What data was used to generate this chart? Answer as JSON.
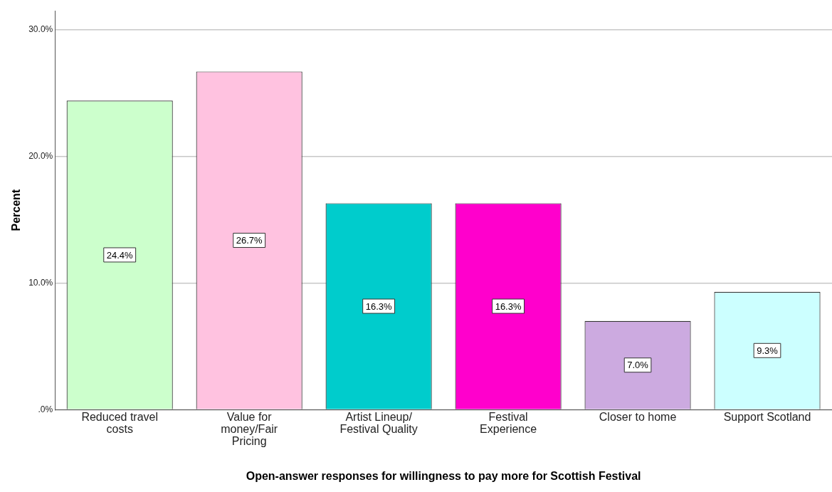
{
  "chart_data": {
    "type": "bar",
    "xlabel": "Open-answer responses for willingness to pay more for Scottish Festival",
    "ylabel": "Percent",
    "categories": [
      "Reduced travel costs",
      "Value for money/Fair Pricing",
      "Artist Lineup/ Festival Quality",
      "Festival Experience",
      "Closer to home",
      "Support Scotland"
    ],
    "values": [
      24.4,
      26.7,
      16.3,
      16.3,
      7.0,
      9.3
    ],
    "colors": [
      "#ccffcc",
      "#ffc2e0",
      "#00cccc",
      "#ff00cc",
      "#ccaae0",
      "#ccffff"
    ],
    "value_labels": [
      "24.4%",
      "26.7%",
      "16.3%",
      "16.3%",
      "7.0%",
      "9.3%"
    ],
    "ylim": [
      0,
      31.5
    ],
    "yticks": [
      {
        "value": 0,
        "label": ".0%"
      },
      {
        "value": 10,
        "label": "10.0%"
      },
      {
        "value": 20,
        "label": "20.0%"
      },
      {
        "value": 30,
        "label": "30.0%"
      }
    ],
    "grid": "y",
    "legend": false
  }
}
